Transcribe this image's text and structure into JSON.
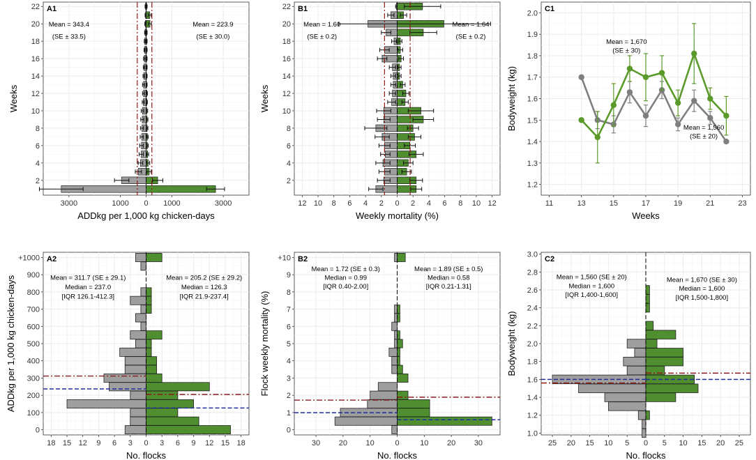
{
  "colors": {
    "grey": "#9e9e9e",
    "green": "#4f8f2f",
    "greenLine": "#5a9a2a",
    "greyLine": "#7f7f7f",
    "red": "#8b1a1a",
    "blue": "#1f2f9f",
    "grid": "#ebebeb",
    "gridMinor": "#f4f4f4"
  },
  "chart_data": [
    {
      "id": "A1",
      "type": "bar",
      "xlabel": "ADDkg per 1,000 kg chicken-days",
      "ylabel": "Weeks",
      "xlim": [
        -4000,
        4000
      ],
      "ylim": [
        0.3,
        22.5
      ],
      "x_ticks": [
        -3000,
        -1000,
        0,
        1000,
        3000
      ],
      "x_tick_labels": [
        "3000",
        "1000",
        "0",
        "1000",
        "3000"
      ],
      "y_ticks": [
        2,
        4,
        6,
        8,
        10,
        12,
        14,
        16,
        18,
        20,
        22
      ],
      "y_tick_labels": [
        "2",
        "4",
        "6",
        "8",
        "10",
        "12",
        "14",
        "16",
        "18",
        "20",
        "22"
      ],
      "weeks": [
        1,
        2,
        3,
        4,
        5,
        6,
        7,
        8,
        9,
        10,
        11,
        12,
        13,
        14,
        15,
        16,
        17,
        18,
        19,
        20,
        21,
        22
      ],
      "left_values": [
        3300,
        950,
        300,
        220,
        190,
        180,
        170,
        160,
        150,
        140,
        110,
        100,
        100,
        90,
        80,
        70,
        60,
        50,
        40,
        30,
        20,
        20
      ],
      "left_err": [
        850,
        280,
        120,
        90,
        80,
        70,
        60,
        60,
        60,
        50,
        40,
        40,
        40,
        30,
        30,
        30,
        20,
        20,
        20,
        20,
        20,
        20
      ],
      "right_values": [
        2700,
        450,
        120,
        80,
        60,
        50,
        50,
        40,
        40,
        30,
        30,
        30,
        20,
        20,
        20,
        20,
        20,
        20,
        20,
        150,
        140,
        20
      ],
      "right_err": [
        350,
        200,
        80,
        60,
        40,
        30,
        30,
        30,
        30,
        30,
        20,
        20,
        20,
        20,
        20,
        20,
        20,
        20,
        20,
        60,
        60,
        20
      ],
      "ref_lines": [
        {
          "x": -343.4,
          "color": "red",
          "dash": "dashdot"
        },
        {
          "x": 223.9,
          "color": "red",
          "dash": "dashdot"
        }
      ],
      "annotations": [
        {
          "text": "Mean = 343.4",
          "x": -3000,
          "y": 19.7
        },
        {
          "text": "(SE ± 33.5)",
          "x": -3000,
          "y": 18.3
        },
        {
          "text": "Mean = 223.9",
          "x": 2600,
          "y": 19.7
        },
        {
          "text": "(SE ± 30.0)",
          "x": 2600,
          "y": 18.3
        }
      ]
    },
    {
      "id": "B1",
      "type": "bar",
      "xlabel": "Weekly mortality (%)",
      "ylabel": "Weeks",
      "xlim": [
        -13,
        13
      ],
      "ylim": [
        0.3,
        22.5
      ],
      "x_ticks": [
        -12,
        -10,
        -8,
        -6,
        -4,
        -2,
        0,
        2,
        4,
        6,
        8,
        10,
        12
      ],
      "x_tick_labels": [
        "12",
        "10",
        "8",
        "6",
        "4",
        "2",
        "0",
        "2",
        "4",
        "6",
        "8",
        "10",
        "12"
      ],
      "y_ticks": [
        2,
        4,
        6,
        8,
        10,
        12,
        14,
        16,
        18,
        20,
        22
      ],
      "y_tick_labels": [
        "2",
        "4",
        "6",
        "8",
        "10",
        "12",
        "14",
        "16",
        "18",
        "20",
        "22"
      ],
      "weeks": [
        1,
        2,
        3,
        4,
        5,
        6,
        7,
        8,
        9,
        10,
        11,
        12,
        13,
        14,
        15,
        16,
        17,
        18,
        19,
        20,
        21,
        22
      ],
      "left_values": [
        2.7,
        1.7,
        1.6,
        1.8,
        1.5,
        1.6,
        1.9,
        2.7,
        1.7,
        1.7,
        0.7,
        0.6,
        0.5,
        0.5,
        0.6,
        1.9,
        1.6,
        0.4,
        1.4,
        3.7,
        0.8,
        0.1
      ],
      "left_err": [
        0.9,
        0.8,
        0.7,
        0.9,
        0.6,
        0.7,
        0.9,
        1.4,
        0.8,
        0.9,
        0.5,
        0.4,
        0.3,
        0.3,
        0.4,
        0.6,
        0.6,
        0.3,
        0.6,
        3.7,
        0.4,
        0.1
      ],
      "right_values": [
        2.4,
        2.4,
        1.2,
        1.4,
        2.4,
        1.6,
        2.2,
        2.0,
        3.3,
        3.0,
        1.0,
        1.1,
        0.7,
        0.3,
        0.3,
        0.5,
        0.4,
        0.4,
        3.3,
        5.9,
        0.8,
        3.2
      ],
      "right_err": [
        0.7,
        0.8,
        0.6,
        0.6,
        0.9,
        0.7,
        0.8,
        0.7,
        1.3,
        1.6,
        0.4,
        0.4,
        0.3,
        0.2,
        0.2,
        0.3,
        0.3,
        0.2,
        1.7,
        5.9,
        0.4,
        2.3
      ],
      "ref_lines": [
        {
          "x": -1.6,
          "color": "red",
          "dash": "dashdot"
        },
        {
          "x": 1.64,
          "color": "red",
          "dash": "dashdot"
        }
      ],
      "annotations": [
        {
          "text": "Mean = 1.60",
          "x": -9.5,
          "y": 19.7
        },
        {
          "text": "(SE ± 0.2)",
          "x": -9.5,
          "y": 18.3
        },
        {
          "text": "Mean = 1.64",
          "x": 9.3,
          "y": 19.7
        },
        {
          "text": "(SE ± 0.2)",
          "x": 9.3,
          "y": 18.3
        }
      ]
    },
    {
      "id": "C1",
      "type": "line",
      "xlabel": "Weeks",
      "ylabel": "Bodyweight (kg)",
      "xlim": [
        10.5,
        23.5
      ],
      "ylim": [
        1.15,
        2.05
      ],
      "x_ticks": [
        11,
        13,
        15,
        17,
        19,
        21,
        23
      ],
      "x_tick_labels": [
        "11",
        "13",
        "15",
        "17",
        "19",
        "21",
        "23"
      ],
      "y_ticks": [
        1.2,
        1.3,
        1.4,
        1.5,
        1.6,
        1.7,
        1.8,
        1.9,
        2.0
      ],
      "y_tick_labels": [
        "1.2",
        "1.3",
        "1.4",
        "1.5",
        "1.6",
        "1.7",
        "1.8",
        "1.9",
        "2.0"
      ],
      "x": [
        13,
        14,
        15,
        16,
        17,
        18,
        19,
        20,
        21,
        22
      ],
      "series": [
        {
          "name": "grey",
          "color": "greyLine",
          "values": [
            1.7,
            1.5,
            1.48,
            1.63,
            1.52,
            1.64,
            1.48,
            1.59,
            1.51,
            1.4
          ],
          "err": [
            0.0,
            0.04,
            0.04,
            0.05,
            0.05,
            0.04,
            0.03,
            0.05,
            0.03,
            0.0
          ]
        },
        {
          "name": "green",
          "color": "greenLine",
          "values": [
            1.5,
            1.42,
            1.57,
            1.74,
            1.7,
            1.72,
            1.58,
            1.81,
            1.6,
            1.52
          ],
          "err": [
            0.0,
            0.12,
            0.1,
            0.06,
            0.11,
            0.08,
            0.06,
            0.14,
            0.05,
            0.09
          ]
        }
      ],
      "annotations": [
        {
          "text": "Mean = 1,670",
          "x": 15.8,
          "y": 1.855
        },
        {
          "text": "(SE ± 30)",
          "x": 15.8,
          "y": 1.815
        },
        {
          "text": "Mean = 1,560",
          "x": 20.6,
          "y": 1.455
        },
        {
          "text": "(SE ± 20)",
          "x": 20.6,
          "y": 1.415
        }
      ]
    },
    {
      "id": "A2",
      "type": "bar",
      "xlabel": "No. flocks",
      "ylabel": "ADDkg per 1,000 kg chicken-days",
      "xlim": [
        -19.5,
        19.5
      ],
      "ylim": [
        -30,
        1030
      ],
      "x_ticks": [
        -18,
        -15,
        -12,
        -9,
        -6,
        -3,
        0,
        3,
        6,
        9,
        12,
        15,
        18
      ],
      "x_tick_labels": [
        "18",
        "15",
        "12",
        "9",
        "6",
        "3",
        "0",
        "3",
        "6",
        "9",
        "12",
        "15",
        "18"
      ],
      "y_ticks": [
        0,
        100,
        200,
        300,
        400,
        500,
        600,
        700,
        800,
        900,
        1000
      ],
      "y_tick_labels": [
        "0",
        "100",
        "200",
        "300",
        "400",
        "500",
        "600",
        "700",
        "800",
        "900",
        "+1000"
      ],
      "bins": [
        0,
        50,
        100,
        150,
        200,
        250,
        300,
        350,
        400,
        450,
        500,
        550,
        600,
        650,
        700,
        750,
        800,
        850,
        900,
        950,
        1000
      ],
      "left_values": [
        4,
        3,
        3,
        15,
        3,
        7,
        8,
        4,
        4,
        5,
        2,
        3,
        1,
        2,
        1,
        3,
        1,
        0,
        0,
        1,
        2
      ],
      "right_values": [
        16,
        10,
        6,
        9,
        6,
        12,
        3,
        2,
        2,
        1,
        1,
        3,
        0,
        0,
        1,
        1,
        1,
        0,
        0,
        0,
        3
      ],
      "ref_lines": [
        {
          "y": 311.7,
          "side": "left",
          "color": "red",
          "dash": "dashdot"
        },
        {
          "y": 237.0,
          "side": "left",
          "color": "blue",
          "dash": "dash"
        },
        {
          "y": 205.2,
          "side": "right",
          "color": "red",
          "dash": "dashdot"
        },
        {
          "y": 126.3,
          "side": "right",
          "color": "blue",
          "dash": "dash"
        }
      ],
      "annotations": [
        {
          "text": "Mean = 311.7 (SE ± 29.1)",
          "x": -11,
          "y": 870
        },
        {
          "text": "Median = 237.0",
          "x": -11,
          "y": 815
        },
        {
          "text": "[IQR 126.1-412.3]",
          "x": -11,
          "y": 760
        },
        {
          "text": "Mean = 205.2 (SE ± 29.2)",
          "x": 11,
          "y": 870
        },
        {
          "text": "Median = 126.3",
          "x": 11,
          "y": 815
        },
        {
          "text": "[IQR 21.9-237.4]",
          "x": 11,
          "y": 760
        }
      ]
    },
    {
      "id": "B2",
      "type": "bar",
      "xlabel": "No. flocks",
      "ylabel": "Flock weekly mortality (%)",
      "xlim": [
        -38,
        38
      ],
      "ylim": [
        -0.3,
        10.3
      ],
      "x_ticks": [
        -30,
        -20,
        -10,
        0,
        10,
        20,
        30
      ],
      "x_tick_labels": [
        "30",
        "20",
        "10",
        "0",
        "10",
        "20",
        "30"
      ],
      "y_ticks": [
        0,
        1,
        2,
        3,
        4,
        5,
        6,
        7,
        8,
        9,
        10
      ],
      "y_tick_labels": [
        "0",
        "1",
        "2",
        "3",
        "4",
        "5",
        "6",
        "7",
        "8",
        "9",
        "+10"
      ],
      "bins": [
        0,
        0.5,
        1,
        1.5,
        2,
        2.5,
        3,
        3.5,
        4,
        4.5,
        5,
        5.5,
        6,
        6.5,
        7,
        7.5,
        8,
        8.5,
        9,
        9.5,
        10
      ],
      "left_values": [
        2,
        23,
        21,
        11,
        10,
        7,
        0,
        2,
        2,
        3,
        1,
        1,
        2,
        1,
        1,
        0,
        0,
        0,
        0,
        0,
        1
      ],
      "right_values": [
        0,
        35,
        12,
        12,
        4,
        0,
        4,
        2,
        1,
        1,
        2,
        1,
        0,
        1,
        1,
        0,
        0,
        0,
        0,
        0,
        3
      ],
      "ref_lines": [
        {
          "y": 1.72,
          "side": "left",
          "color": "red",
          "dash": "dashdot"
        },
        {
          "y": 0.99,
          "side": "left",
          "color": "blue",
          "dash": "dash"
        },
        {
          "y": 1.89,
          "side": "right",
          "color": "red",
          "dash": "dashdot"
        },
        {
          "y": 0.58,
          "side": "right",
          "color": "blue",
          "dash": "dash"
        }
      ],
      "annotations": [
        {
          "text": "Mean = 1.72 (SE ± 0.3)",
          "x": -19,
          "y": 9.2
        },
        {
          "text": "Median = 0.99",
          "x": -19,
          "y": 8.7
        },
        {
          "text": "[IQR 0.40-2.00]",
          "x": -19,
          "y": 8.2
        },
        {
          "text": "Mean = 1.89 (SE ± 0.5)",
          "x": 19,
          "y": 9.2
        },
        {
          "text": "Median = 0.58",
          "x": 19,
          "y": 8.7
        },
        {
          "text": "[IQR 0.21-1.31]",
          "x": 19,
          "y": 8.2
        }
      ]
    },
    {
      "id": "C2",
      "type": "bar",
      "xlabel": "No. flocks",
      "ylabel": "Bodyweight (kg)",
      "xlim": [
        -28,
        28
      ],
      "ylim": [
        0.98,
        3.02
      ],
      "x_ticks": [
        -25,
        -20,
        -15,
        -10,
        -5,
        0,
        5,
        10,
        15,
        20,
        25
      ],
      "x_tick_labels": [
        "25",
        "20",
        "15",
        "10",
        "5",
        "0",
        "5",
        "10",
        "15",
        "20",
        "25"
      ],
      "y_ticks": [
        1.0,
        1.2,
        1.4,
        1.6,
        1.8,
        2.0,
        2.2,
        2.4,
        2.6,
        2.8,
        3.0
      ],
      "y_tick_labels": [
        "1.0",
        "1.2",
        "1.4",
        "1.6",
        "1.8",
        "2.0",
        "2.2",
        "2.4",
        "2.6",
        "2.8",
        "3.0"
      ],
      "bins": [
        1.0,
        1.1,
        1.2,
        1.3,
        1.4,
        1.5,
        1.6,
        1.7,
        1.8,
        1.9,
        2.0,
        2.1,
        2.2,
        2.3,
        2.4,
        2.5,
        2.6
      ],
      "left_values": [
        1,
        1,
        2,
        10,
        11,
        18,
        25,
        5,
        6,
        3,
        5,
        0,
        0,
        0,
        0,
        0,
        0
      ],
      "right_values": [
        0,
        0,
        1,
        0,
        8,
        14,
        13,
        5,
        10,
        10,
        3,
        8,
        2,
        0,
        1,
        1,
        1
      ],
      "ref_lines": [
        {
          "y": 1.56,
          "side": "left",
          "color": "red",
          "dash": "dashdot"
        },
        {
          "y": 1.6,
          "side": "left",
          "color": "blue",
          "dash": "dash"
        },
        {
          "y": 1.67,
          "side": "right",
          "color": "red",
          "dash": "dashdot"
        },
        {
          "y": 1.6,
          "side": "right",
          "color": "blue",
          "dash": "dash"
        }
      ],
      "annotations": [
        {
          "text": "Mean = 1,560 (SE ± 20)",
          "x": -14.5,
          "y": 2.72
        },
        {
          "text": "Median = 1,600",
          "x": -14.5,
          "y": 2.62
        },
        {
          "text": "[IQR 1,400-1,600]",
          "x": -14.5,
          "y": 2.52
        },
        {
          "text": "Mean = 1,670 (SE ± 30)",
          "x": 15,
          "y": 2.69
        },
        {
          "text": "Median = 1,600",
          "x": 15,
          "y": 2.59
        },
        {
          "text": "[IQR 1,500-1,800]",
          "x": 15,
          "y": 2.49
        }
      ]
    }
  ]
}
